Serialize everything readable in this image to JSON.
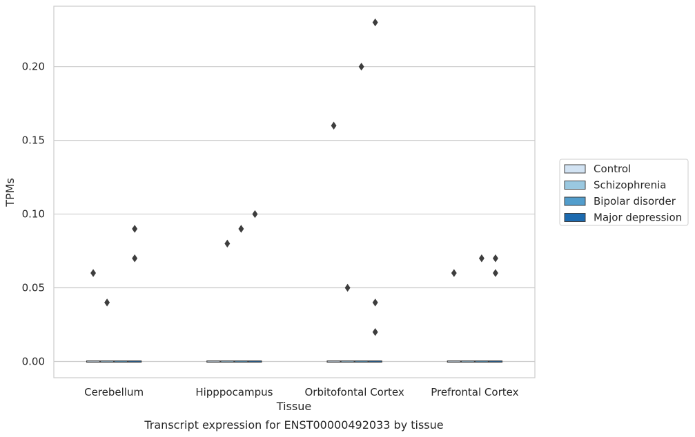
{
  "chart_data": {
    "type": "box",
    "xlabel": "Tissue",
    "ylabel": "TPMs",
    "caption": "Transcript expression for ENST00000492033 by tissue",
    "categories": [
      "Cerebellum",
      "Hipppocampus",
      "Orbitofontal Cortex",
      "Prefrontal Cortex"
    ],
    "ylim": [
      -0.011,
      0.241
    ],
    "yticks": [
      0.0,
      0.05,
      0.1,
      0.15,
      0.2
    ],
    "ytick_labels": [
      "0.00",
      "0.05",
      "0.10",
      "0.15",
      "0.20"
    ],
    "grid": "horizontal",
    "legend_position": "right",
    "series": [
      {
        "name": "Control",
        "color": "#d2e3f3",
        "median": [
          0,
          0,
          0,
          0
        ],
        "outliers": [
          [
            0.06
          ],
          [],
          [
            0.16
          ],
          [
            0.06
          ]
        ]
      },
      {
        "name": "Schizophrenia",
        "color": "#9ac8e0",
        "median": [
          0,
          0,
          0,
          0
        ],
        "outliers": [
          [
            0.04
          ],
          [
            0.08
          ],
          [
            0.05
          ],
          []
        ]
      },
      {
        "name": "Bipolar disorder",
        "color": "#529dcc",
        "median": [
          0,
          0,
          0,
          0
        ],
        "outliers": [
          [],
          [
            0.09
          ],
          [
            0.2
          ],
          [
            0.07
          ]
        ]
      },
      {
        "name": "Major depression",
        "color": "#1c6aaf",
        "median": [
          0,
          0,
          0,
          0
        ],
        "outliers": [
          [
            0.09,
            0.07
          ],
          [
            0.1
          ],
          [
            0.23,
            0.04,
            0.02
          ],
          [
            0.07,
            0.06
          ]
        ]
      }
    ]
  }
}
